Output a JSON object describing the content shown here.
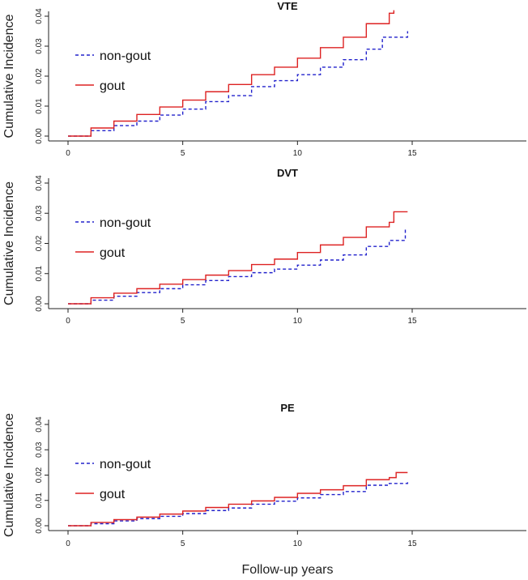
{
  "chart_data": [
    {
      "type": "line",
      "title": "VTE",
      "xlabel": "",
      "ylabel": "Cumulative Incidence",
      "xlim": [
        0,
        15
      ],
      "ylim": [
        0,
        0.04
      ],
      "xticks": [
        "0",
        "5",
        "10",
        "15"
      ],
      "yticks": [
        "0.00",
        "0.01",
        "0.02",
        "0.03",
        "0.04"
      ],
      "legend": "top-left",
      "series": [
        {
          "name": "non-gout",
          "color": "#2222cc",
          "style": "dashed",
          "x": [
            0,
            1,
            2,
            3,
            4,
            5,
            6,
            7,
            8,
            9,
            10,
            11,
            12,
            13,
            13.7,
            14.8
          ],
          "y": [
            0,
            0.0018,
            0.0035,
            0.005,
            0.007,
            0.009,
            0.0115,
            0.0135,
            0.0165,
            0.0185,
            0.0205,
            0.023,
            0.0255,
            0.029,
            0.033,
            0.035
          ]
        },
        {
          "name": "gout",
          "color": "#dd2222",
          "style": "solid",
          "x": [
            0,
            1,
            2,
            3,
            4,
            5,
            6,
            7,
            8,
            9,
            10,
            11,
            12,
            13,
            14,
            14.2
          ],
          "y": [
            0,
            0.0027,
            0.005,
            0.0072,
            0.0097,
            0.012,
            0.0148,
            0.0172,
            0.0205,
            0.023,
            0.026,
            0.0295,
            0.033,
            0.0375,
            0.041,
            0.042
          ]
        }
      ]
    },
    {
      "type": "line",
      "title": "DVT",
      "xlabel": "",
      "ylabel": "Cumulative Incidence",
      "xlim": [
        0,
        15
      ],
      "ylim": [
        0,
        0.04
      ],
      "xticks": [
        "0",
        "5",
        "10",
        "15"
      ],
      "yticks": [
        "0.00",
        "0.01",
        "0.02",
        "0.03",
        "0.04"
      ],
      "legend": "top-left",
      "series": [
        {
          "name": "non-gout",
          "color": "#2222cc",
          "style": "dashed",
          "x": [
            0,
            1,
            2,
            3,
            4,
            5,
            6,
            7,
            8,
            9,
            10,
            11,
            12,
            13,
            14,
            14.7
          ],
          "y": [
            0,
            0.0012,
            0.0025,
            0.0037,
            0.005,
            0.0063,
            0.0077,
            0.009,
            0.0103,
            0.0115,
            0.0128,
            0.0145,
            0.0162,
            0.019,
            0.021,
            0.025
          ]
        },
        {
          "name": "gout",
          "color": "#dd2222",
          "style": "solid",
          "x": [
            0,
            1,
            2,
            3,
            4,
            5,
            6,
            7,
            8,
            9,
            10,
            11,
            12,
            13,
            14,
            14.2,
            14.8
          ],
          "y": [
            0,
            0.002,
            0.0035,
            0.005,
            0.0065,
            0.008,
            0.0095,
            0.011,
            0.013,
            0.0148,
            0.017,
            0.0195,
            0.022,
            0.0255,
            0.027,
            0.0305,
            0.0305
          ]
        }
      ]
    },
    {
      "type": "line",
      "title": "PE",
      "xlabel": "Follow-up years",
      "ylabel": "Cumulative Incidence",
      "xlim": [
        0,
        15
      ],
      "ylim": [
        0,
        0.04
      ],
      "xticks": [
        "0",
        "5",
        "10",
        "15"
      ],
      "yticks": [
        "0.00",
        "0.01",
        "0.02",
        "0.03",
        "0.04"
      ],
      "legend": "top-left",
      "series": [
        {
          "name": "non-gout",
          "color": "#2222cc",
          "style": "dashed",
          "x": [
            0,
            1,
            2,
            3,
            4,
            5,
            6,
            7,
            8,
            9,
            10,
            11,
            12,
            13,
            14,
            14.8
          ],
          "y": [
            0,
            0.0008,
            0.0019,
            0.0028,
            0.0037,
            0.0048,
            0.006,
            0.007,
            0.0085,
            0.0097,
            0.011,
            0.0123,
            0.0135,
            0.016,
            0.0167,
            0.0175
          ]
        },
        {
          "name": "gout",
          "color": "#dd2222",
          "style": "solid",
          "x": [
            0,
            1,
            2,
            3,
            4,
            5,
            6,
            7,
            8,
            9,
            10,
            11,
            12,
            13,
            14,
            14.3,
            14.8
          ],
          "y": [
            0,
            0.0013,
            0.0024,
            0.0034,
            0.0046,
            0.0058,
            0.0072,
            0.0085,
            0.0098,
            0.0112,
            0.0128,
            0.0142,
            0.0158,
            0.0182,
            0.019,
            0.021,
            0.021
          ]
        }
      ]
    }
  ]
}
